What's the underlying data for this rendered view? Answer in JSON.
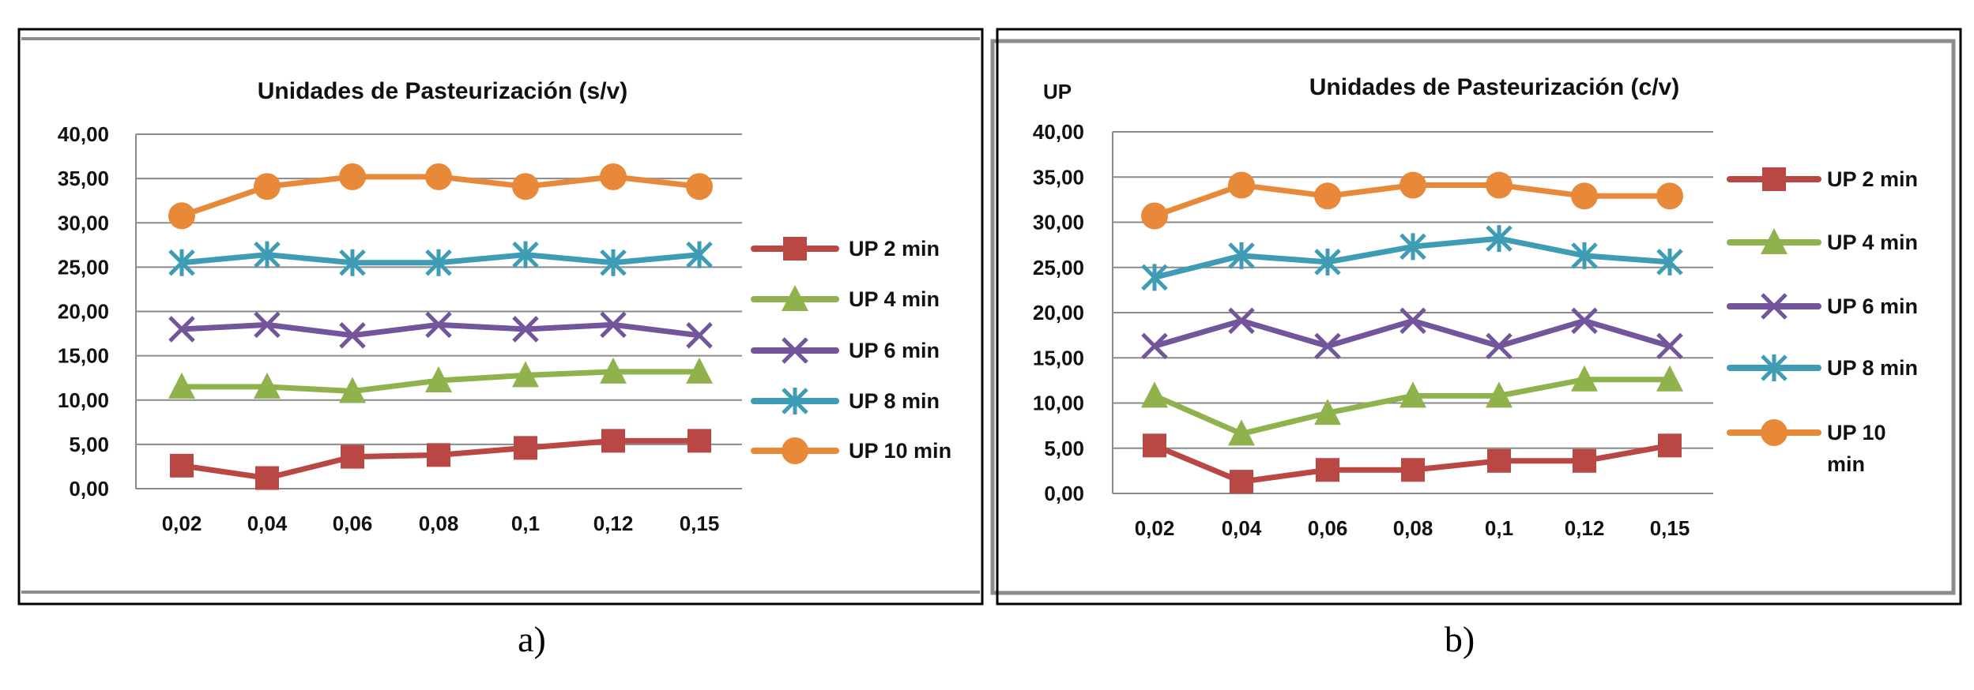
{
  "chart_data": [
    {
      "type": "line",
      "title": "Unidades de Pasteurización (s/v)",
      "caption": "a)",
      "ylabel": "",
      "xlabel": "",
      "ylim": [
        0,
        40
      ],
      "yticks": [
        "0,00",
        "5,00",
        "10,00",
        "15,00",
        "20,00",
        "25,00",
        "30,00",
        "35,00",
        "40,00"
      ],
      "categories": [
        "0,02",
        "0,04",
        "0,06",
        "0,08",
        "0,1",
        "0,12",
        "0,15"
      ],
      "grid": true,
      "legend_position": "right",
      "series": [
        {
          "name": "UP 2 min",
          "color": "#b94744",
          "marker": "square",
          "values": [
            2.6,
            1.2,
            3.6,
            3.8,
            4.6,
            5.4,
            5.4
          ]
        },
        {
          "name": "UP 4 min",
          "color": "#8fb24d",
          "marker": "triangle",
          "values": [
            11.5,
            11.5,
            11.0,
            12.2,
            12.8,
            13.2,
            13.2
          ]
        },
        {
          "name": "UP 6 min",
          "color": "#72559a",
          "marker": "x",
          "values": [
            18.0,
            18.5,
            17.3,
            18.5,
            18.0,
            18.5,
            17.3
          ]
        },
        {
          "name": "UP 8 min",
          "color": "#3e9db5",
          "marker": "asterisk",
          "values": [
            25.5,
            26.4,
            25.5,
            25.5,
            26.4,
            25.5,
            26.4
          ]
        },
        {
          "name": "UP 10 min",
          "color": "#e8893a",
          "marker": "circle",
          "values": [
            30.8,
            34.1,
            35.2,
            35.2,
            34.1,
            35.2,
            34.1
          ]
        }
      ]
    },
    {
      "type": "line",
      "title": "Unidades de Pasteurización (c/v)",
      "caption": "b)",
      "ylabel": "UP",
      "xlabel": "",
      "ylim": [
        0,
        40
      ],
      "yticks": [
        "0,00",
        "5,00",
        "10,00",
        "15,00",
        "20,00",
        "25,00",
        "30,00",
        "35,00",
        "40,00"
      ],
      "categories": [
        "0,02",
        "0,04",
        "0,06",
        "0,08",
        "0,1",
        "0,12",
        "0,15"
      ],
      "grid": true,
      "legend_position": "right",
      "series": [
        {
          "name": "UP 2 min",
          "color": "#b94744",
          "marker": "square",
          "values": [
            5.3,
            1.3,
            2.6,
            2.6,
            3.6,
            3.6,
            5.3
          ]
        },
        {
          "name": "UP 4 min",
          "color": "#8fb24d",
          "marker": "triangle",
          "values": [
            10.8,
            6.6,
            8.9,
            10.8,
            10.8,
            12.6,
            12.6
          ]
        },
        {
          "name": "UP 6 min",
          "color": "#72559a",
          "marker": "x",
          "values": [
            16.3,
            19.1,
            16.3,
            19.1,
            16.3,
            19.1,
            16.3
          ]
        },
        {
          "name": "UP 8 min",
          "color": "#3e9db5",
          "marker": "asterisk",
          "values": [
            23.9,
            26.3,
            25.6,
            27.3,
            28.2,
            26.3,
            25.6
          ]
        },
        {
          "name": "UP 10 min",
          "color": "#e8893a",
          "marker": "circle",
          "values": [
            30.7,
            34.1,
            32.9,
            34.1,
            34.1,
            32.9,
            32.9
          ]
        }
      ]
    }
  ]
}
